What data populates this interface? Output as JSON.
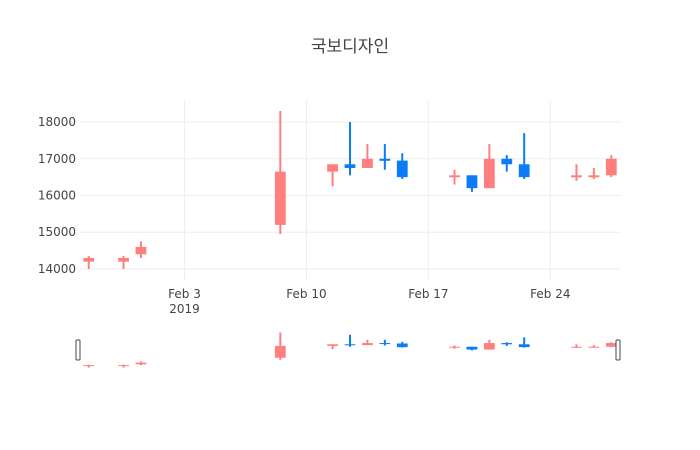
{
  "chart_data": {
    "type": "candlestick",
    "title": "국보디자인",
    "ylim": [
      13700,
      18600
    ],
    "yticks": [
      14000,
      15000,
      16000,
      17000,
      18000
    ],
    "xlim": [
      "2019-01-28",
      "2019-02-28"
    ],
    "xticks": [
      {
        "date": "2019-02-03",
        "label": "Feb 3",
        "sublabel": "2019"
      },
      {
        "date": "2019-02-10",
        "label": "Feb 10",
        "sublabel": ""
      },
      {
        "date": "2019-02-17",
        "label": "Feb 17",
        "sublabel": ""
      },
      {
        "date": "2019-02-24",
        "label": "Feb 24",
        "sublabel": ""
      }
    ],
    "grid": true,
    "rangeslider": true,
    "increasing_color": "#FF7F7F",
    "decreasing_color": "#0B7CF5",
    "candles": [
      {
        "date": "2019-01-28",
        "open": 14200,
        "high": 14350,
        "low": 14000,
        "close": 14300
      },
      {
        "date": "2019-01-30",
        "open": 14200,
        "high": 14350,
        "low": 14000,
        "close": 14300
      },
      {
        "date": "2019-01-31",
        "open": 14400,
        "high": 14750,
        "low": 14300,
        "close": 14600
      },
      {
        "date": "2019-02-08",
        "open": 15200,
        "high": 18300,
        "low": 14950,
        "close": 16650
      },
      {
        "date": "2019-02-11",
        "open": 16650,
        "high": 16850,
        "low": 16250,
        "close": 16850
      },
      {
        "date": "2019-02-12",
        "open": 16850,
        "high": 18000,
        "low": 16550,
        "close": 16750
      },
      {
        "date": "2019-02-13",
        "open": 16750,
        "high": 17400,
        "low": 16750,
        "close": 17000
      },
      {
        "date": "2019-02-14",
        "open": 17000,
        "high": 17400,
        "low": 16700,
        "close": 16950
      },
      {
        "date": "2019-02-15",
        "open": 16950,
        "high": 17150,
        "low": 16450,
        "close": 16500
      },
      {
        "date": "2019-02-18",
        "open": 16500,
        "high": 16700,
        "low": 16300,
        "close": 16550
      },
      {
        "date": "2019-02-19",
        "open": 16550,
        "high": 16550,
        "low": 16100,
        "close": 16200
      },
      {
        "date": "2019-02-20",
        "open": 16200,
        "high": 17400,
        "low": 16200,
        "close": 17000
      },
      {
        "date": "2019-02-21",
        "open": 17000,
        "high": 17100,
        "low": 16650,
        "close": 16850
      },
      {
        "date": "2019-02-22",
        "open": 16850,
        "high": 17700,
        "low": 16450,
        "close": 16500
      },
      {
        "date": "2019-02-25",
        "open": 16500,
        "high": 16850,
        "low": 16400,
        "close": 16550
      },
      {
        "date": "2019-02-26",
        "open": 16500,
        "high": 16750,
        "low": 16450,
        "close": 16550
      },
      {
        "date": "2019-02-27",
        "open": 16550,
        "high": 17100,
        "low": 16500,
        "close": 17000
      }
    ]
  }
}
